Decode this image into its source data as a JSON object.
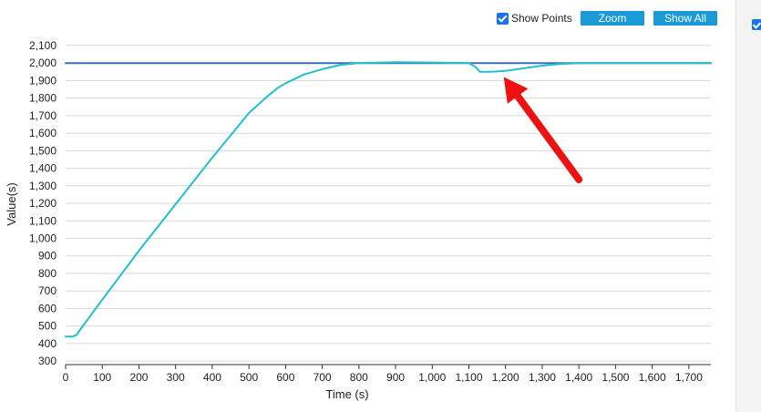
{
  "controls": {
    "show_points_label": "Show Points",
    "show_points_checked": true,
    "zoom_label": "Zoom",
    "show_all_label": "Show All"
  },
  "chart_data": {
    "type": "line",
    "xlabel": "Time (s)",
    "ylabel": "Value(s)",
    "xlim": [
      0,
      1760
    ],
    "ylim": [
      280,
      2110
    ],
    "x_ticks": [
      0,
      100,
      200,
      300,
      400,
      500,
      600,
      700,
      800,
      900,
      1000,
      1100,
      1200,
      1300,
      1400,
      1500,
      1600,
      1700
    ],
    "x_tick_labels": [
      "0",
      "100",
      "200",
      "300",
      "400",
      "500",
      "600",
      "700",
      "800",
      "900",
      "1,000",
      "1,100",
      "1,200",
      "1,300",
      "1,400",
      "1,500",
      "1,600",
      "1,700"
    ],
    "y_ticks": [
      300,
      400,
      500,
      600,
      700,
      800,
      900,
      1000,
      1100,
      1200,
      1300,
      1400,
      1500,
      1600,
      1700,
      1800,
      1900,
      2000,
      2100
    ],
    "y_tick_labels": [
      "300",
      "400",
      "500",
      "600",
      "700",
      "800",
      "900",
      "1,000",
      "1,100",
      "1,200",
      "1,300",
      "1,400",
      "1,500",
      "1,600",
      "1,700",
      "1,800",
      "1,900",
      "2,000",
      "2,100"
    ],
    "grid": true,
    "series": [
      {
        "color": "#3a6fb6",
        "x": [
          0,
          1760
        ],
        "y": [
          2000,
          2000
        ]
      },
      {
        "color": "#22bfcc",
        "x": [
          0,
          20,
          30,
          40,
          100,
          200,
          300,
          400,
          500,
          550,
          580,
          600,
          650,
          700,
          750,
          800,
          900,
          1000,
          1100,
          1120,
          1130,
          1160,
          1200,
          1250,
          1300,
          1350,
          1400,
          1500,
          1600,
          1700,
          1760
        ],
        "y": [
          440,
          440,
          450,
          480,
          650,
          930,
          1195,
          1460,
          1715,
          1810,
          1860,
          1885,
          1935,
          1965,
          1990,
          2000,
          2005,
          2003,
          2000,
          1975,
          1950,
          1950,
          1955,
          1970,
          1985,
          1995,
          2000,
          2000,
          2000,
          2000,
          2000
        ]
      }
    ],
    "annotations": [
      {
        "type": "arrow",
        "color": "#ee1111",
        "from": [
          1400,
          1335
        ],
        "to": [
          1195,
          1920
        ]
      }
    ]
  }
}
